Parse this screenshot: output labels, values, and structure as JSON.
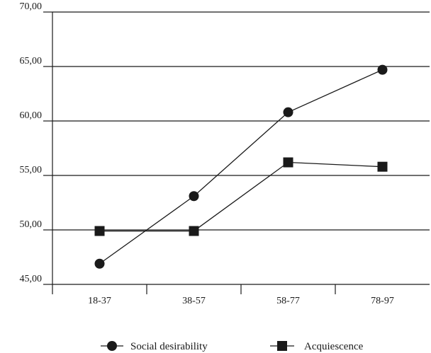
{
  "chart_data": {
    "type": "line",
    "title": "",
    "xlabel": "",
    "ylabel": "",
    "categories": [
      "18-37",
      "38-57",
      "58-77",
      "78-97"
    ],
    "ylim": [
      45,
      70
    ],
    "yticks": [
      "45,00",
      "50,00",
      "55,00",
      "60,00",
      "65,00",
      "70,00"
    ],
    "ytick_values": [
      45,
      50,
      55,
      60,
      65,
      70
    ],
    "grid": "horizontal",
    "legend_position": "bottom",
    "series": [
      {
        "name": "Social desirability",
        "marker": "circle",
        "values": [
          46.9,
          53.1,
          60.8,
          64.7
        ]
      },
      {
        "name": "Acquiescence",
        "marker": "square",
        "values": [
          49.9,
          49.9,
          56.2,
          55.8
        ]
      }
    ],
    "colors": {
      "line": "#1a1a1a",
      "marker": "#1a1a1a",
      "grid": "#1a1a1a"
    }
  }
}
